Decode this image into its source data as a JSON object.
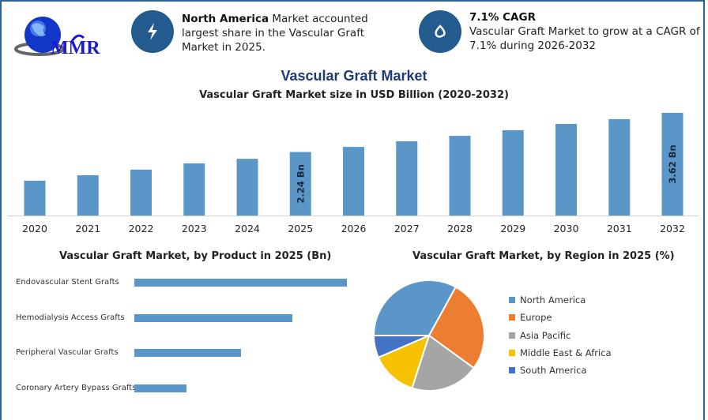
{
  "header": {
    "logo_text": "MMR",
    "info1": {
      "icon": "lightning-icon",
      "bold": "North America",
      "text": " Market accounted largest share in the Vascular Graft Market in 2025."
    },
    "info2": {
      "icon": "drop-icon",
      "bold": "7.1% CAGR",
      "text": "Vascular Graft Market to grow at a CAGR of 7.1% during 2026-2032"
    }
  },
  "main_title": "Vascular Graft Market",
  "colors": {
    "bar": "#5b96c9",
    "frame": "#2d6397",
    "title": "#1f3b73"
  },
  "chart_data": [
    {
      "type": "bar",
      "title": "Vascular Graft Market size in USD Billion (2020-2032)",
      "categories": [
        "2020",
        "2021",
        "2022",
        "2023",
        "2024",
        "2025",
        "2026",
        "2027",
        "2028",
        "2029",
        "2030",
        "2031",
        "2032"
      ],
      "values": [
        1.23,
        1.42,
        1.62,
        1.84,
        2.0,
        2.24,
        2.42,
        2.62,
        2.81,
        3.01,
        3.23,
        3.4,
        3.62
      ],
      "data_labels": {
        "2025": "2.24 Bn",
        "2032": "3.62 Bn"
      },
      "ylim": [
        0,
        3.62
      ]
    },
    {
      "type": "bar",
      "orientation": "horizontal",
      "title": "Vascular Graft Market, by Product in 2025 (Bn)",
      "categories": [
        "Endovascular Stent Grafts",
        "Hemodialysis Access Grafts",
        "Peripheral Vascular Grafts",
        "Coronary Artery Bypass Grafts"
      ],
      "values": [
        0.9,
        0.67,
        0.45,
        0.22
      ]
    },
    {
      "type": "pie",
      "title": "Vascular Graft Market, by Region in 2025 (%)",
      "categories": [
        "North America",
        "Europe",
        "Asia Pacific",
        "Middle East & Africa",
        "South America"
      ],
      "values": [
        33,
        27,
        20,
        13.5,
        6.5
      ],
      "colors": [
        "#5b96c9",
        "#ec7d31",
        "#a5a5a5",
        "#f6c100",
        "#4472c4"
      ],
      "legend": "right"
    }
  ]
}
